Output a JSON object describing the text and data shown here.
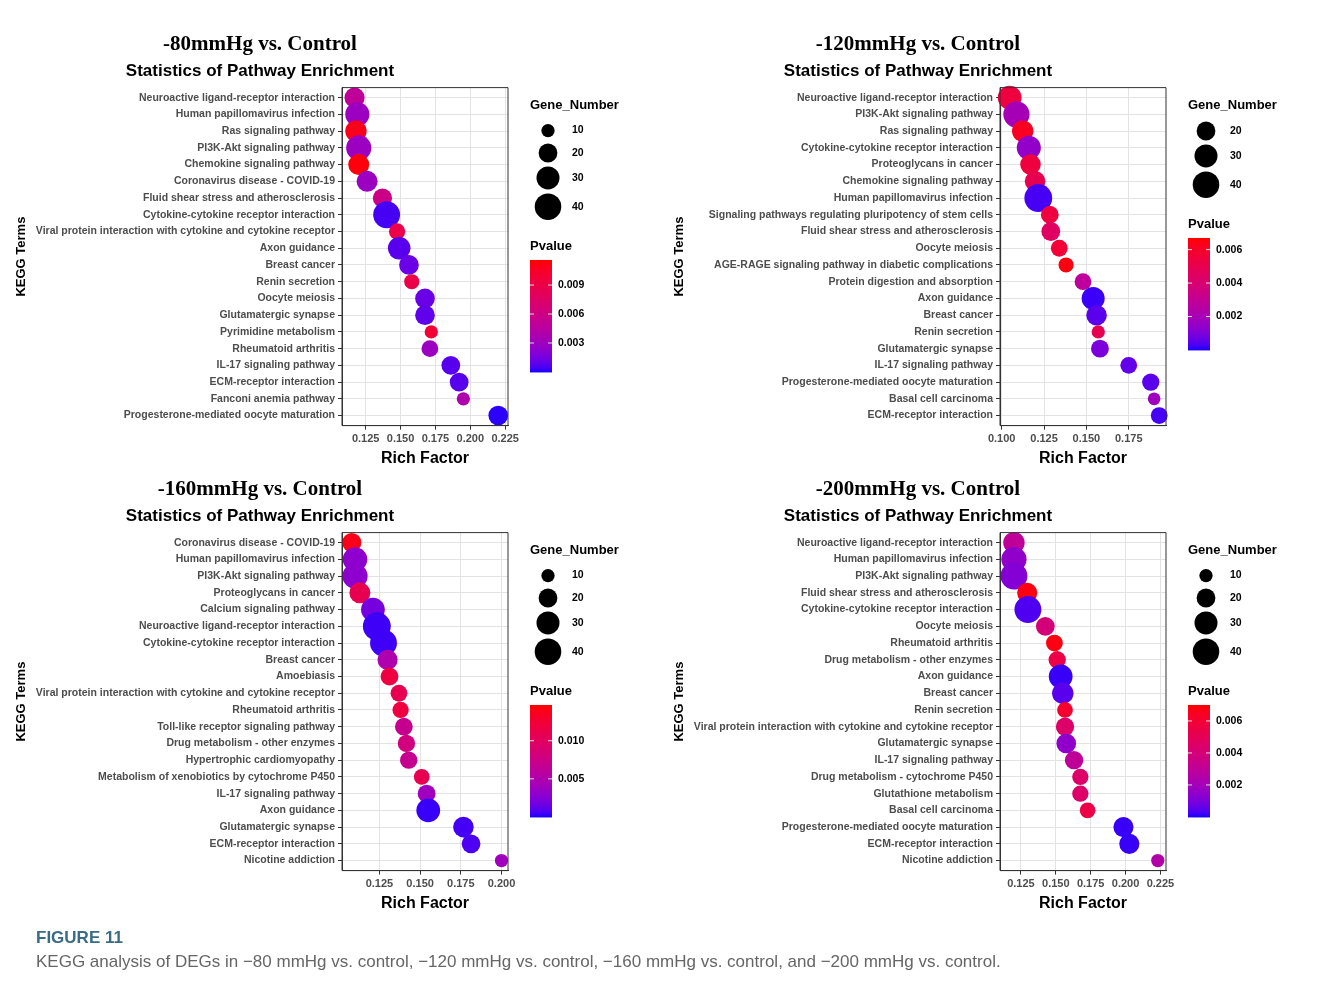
{
  "chart_data": [
    {
      "type": "bubble",
      "orientation": "horizontal",
      "title": "-80mmHg vs. Control",
      "subtitle": "Statistics of Pathway Enrichment",
      "xlabel": "Rich Factor",
      "ylabel": "KEGG Terms",
      "legend_title": "Gene_Number",
      "clabel": "Pvalue",
      "grid": true,
      "categories": [
        "Neuroactive ligand-receptor interaction",
        "Human papillomavirus infection",
        "Ras signaling pathway",
        "PI3K-Akt signaling pathway",
        "Chemokine signaling pathway",
        "Coronavirus disease - COVID-19",
        "Fluid shear stress and atherosclerosis",
        "Cytokine-cytokine receptor interaction",
        "Viral protein interaction with cytokine and cytokine receptor",
        "Axon guidance",
        "Breast cancer",
        "Renin secretion",
        "Oocyte meiosis",
        "Glutamatergic synapse",
        "Pyrimidine metabolism",
        "Rheumatoid arthritis",
        "IL-17 signaling pathway",
        "ECM-receptor interaction",
        "Fanconi anemia pathway",
        "Progesterone-mediated oocyte maturation"
      ],
      "values": [
        0.117,
        0.119,
        0.118,
        0.12,
        0.12,
        0.126,
        0.137,
        0.14,
        0.1475,
        0.149,
        0.156,
        0.158,
        0.1675,
        0.1675,
        0.172,
        0.171,
        0.186,
        0.192,
        0.195,
        0.22
      ],
      "sizes": [
        23,
        33,
        26,
        36,
        25,
        25,
        21,
        41,
        15,
        29,
        22,
        13,
        22,
        22,
        10,
        16,
        20,
        20,
        10,
        22
      ],
      "size_legend": [
        10,
        20,
        30,
        40
      ],
      "cvalues": [
        0.005,
        0.003,
        0.011,
        0.003,
        0.0114,
        0.003,
        0.006,
        0.0005,
        0.009,
        0.0008,
        0.0012,
        0.009,
        0.0012,
        0.001,
        0.01,
        0.003,
        0.0008,
        0.0008,
        0.004,
        0.0002
      ],
      "clim": [
        0,
        0.0116
      ],
      "cticks": [
        0.003,
        0.006,
        0.009
      ],
      "xlim": [
        0.108,
        0.227
      ],
      "xticks": [
        0.125,
        {
          "value": 0.15,
          "label": "0.150"
        },
        0.175,
        {
          "value": 0.2,
          "label": "0.200"
        },
        0.225
      ]
    },
    {
      "type": "bubble",
      "orientation": "horizontal",
      "title": "-120mmHg vs. Control",
      "subtitle": "Statistics of Pathway Enrichment",
      "xlabel": "Rich Factor",
      "ylabel": "KEGG Terms",
      "legend_title": "Gene_Number",
      "clabel": "Pvalue",
      "grid": true,
      "categories": [
        "Neuroactive ligand-receptor interaction",
        "PI3K-Akt signaling pathway",
        "Ras signaling pathway",
        "Cytokine-cytokine receptor interaction",
        "Proteoglycans in cancer",
        "Chemokine signaling pathway",
        "Human papillomavirus infection",
        "Signaling pathways regulating pluripotency of stem cells",
        "Fluid shear stress and atherosclerosis",
        "Oocyte meiosis",
        "AGE-RAGE signaling pathway in diabetic complications",
        "Protein digestion and absorption",
        "Axon guidance",
        "Breast cancer",
        "Renin secretion",
        "Glutamatergic synapse",
        "IL-17 signaling pathway",
        "Progesterone-mediated oocyte maturation",
        "Basal cell carcinoma",
        "ECM-receptor interaction"
      ],
      "values": [
        0.1047,
        0.1087,
        0.1124,
        0.116,
        0.117,
        0.1197,
        0.1216,
        0.1284,
        0.129,
        0.134,
        0.138,
        0.148,
        0.154,
        0.156,
        0.157,
        0.158,
        0.175,
        0.188,
        0.19,
        0.193
      ],
      "sizes": [
        32,
        39,
        26,
        33,
        24,
        24,
        44,
        18,
        20,
        16,
        13,
        16,
        30,
        24,
        10,
        18,
        16,
        17,
        9,
        16
      ],
      "size_legend": [
        20,
        30,
        40
      ],
      "cvalues": [
        0.0055,
        0.002,
        0.0062,
        0.0015,
        0.0055,
        0.005,
        0.0003,
        0.0055,
        0.0045,
        0.0057,
        0.0065,
        0.0028,
        0.0002,
        0.0005,
        0.005,
        0.001,
        0.0006,
        0.0005,
        0.0018,
        0.0003
      ],
      "clim": [
        0,
        0.0067
      ],
      "cticks": [
        0.002,
        0.004,
        0.006
      ],
      "xlim": [
        0.099,
        0.197
      ],
      "xticks": [
        {
          "value": 0.1,
          "label": "0.100"
        },
        0.125,
        {
          "value": 0.15,
          "label": "0.150"
        },
        0.175
      ]
    },
    {
      "type": "bubble",
      "orientation": "horizontal",
      "title": "-160mmHg vs. Control",
      "subtitle": "Statistics of Pathway Enrichment",
      "xlabel": "Rich Factor",
      "ylabel": "KEGG Terms",
      "legend_title": "Gene_Number",
      "clabel": "Pvalue",
      "grid": true,
      "categories": [
        "Coronavirus disease - COVID-19",
        "Human papillomavirus infection",
        "PI3K-Akt signaling pathway",
        "Proteoglycans in cancer",
        "Calcium signaling pathway",
        "Neuroactive ligand-receptor interaction",
        "Cytokine-cytokine receptor interaction",
        "Breast cancer",
        "Amoebiasis",
        "Viral protein interaction with cytokine and cytokine receptor",
        "Rheumatoid arthritis",
        "Toll-like receptor signaling pathway",
        "Drug metabolism - other enzymes",
        "Hypertrophic cardiomyopathy",
        "Metabolism of xenobiotics by cytochrome P450",
        "IL-17 signaling pathway",
        "Axon guidance",
        "Glutamatergic synapse",
        "ECM-receptor interaction",
        "Nicotine addiction"
      ],
      "values": [
        0.108,
        0.11,
        0.11,
        0.113,
        0.121,
        0.1234,
        0.1275,
        0.13,
        0.1312,
        0.137,
        0.138,
        0.14,
        0.1416,
        0.143,
        0.151,
        0.154,
        0.155,
        0.1766,
        0.1813,
        0.2
      ],
      "sizes": [
        21,
        34,
        36,
        25,
        32,
        44,
        41,
        23,
        18,
        16,
        15,
        18,
        17,
        17,
        14,
        18,
        32,
        24,
        20,
        10
      ],
      "size_legend": [
        10,
        20,
        30,
        40
      ],
      "cvalues": [
        0.014,
        0.003,
        0.003,
        0.011,
        0.002,
        0.0005,
        0.0005,
        0.005,
        0.012,
        0.011,
        0.012,
        0.007,
        0.008,
        0.007,
        0.011,
        0.004,
        0.0004,
        0.0006,
        0.0008,
        0.004
      ],
      "clim": [
        0,
        0.0147
      ],
      "cticks": [
        0.005,
        {
          "value": 0.01,
          "label": "0.010"
        }
      ],
      "xlim": [
        0.102,
        0.204
      ],
      "xticks": [
        0.125,
        {
          "value": 0.15,
          "label": "0.150"
        },
        0.175,
        {
          "value": 0.2,
          "label": "0.200"
        }
      ]
    },
    {
      "type": "bubble",
      "orientation": "horizontal",
      "title": "-200mmHg vs. Control",
      "subtitle": "Statistics of Pathway Enrichment",
      "xlabel": "Rich Factor",
      "ylabel": "KEGG Terms",
      "legend_title": "Gene_Number",
      "clabel": "Pvalue",
      "grid": true,
      "categories": [
        "Neuroactive ligand-receptor interaction",
        "Human papillomavirus infection",
        "PI3K-Akt signaling pathway",
        "Fluid shear stress and atherosclerosis",
        "Cytokine-cytokine receptor interaction",
        "Oocyte meiosis",
        "Rheumatoid arthritis",
        "Drug metabolism - other enzymes",
        "Axon guidance",
        "Breast cancer",
        "Renin secretion",
        "Viral protein interaction with cytokine and cytokine receptor",
        "Glutamatergic synapse",
        "IL-17 signaling pathway",
        "Drug metabolism - cytochrome P450",
        "Glutathione metabolism",
        "Basal cell carcinoma",
        "Progesterone-mediated oocyte maturation",
        "ECM-receptor interaction",
        "Nicotine addiction"
      ],
      "values": [
        0.12,
        0.12,
        0.12,
        0.1295,
        0.13,
        0.1425,
        0.149,
        0.151,
        0.1535,
        0.155,
        0.1566,
        0.1566,
        0.1575,
        0.1631,
        0.1676,
        0.1676,
        0.1728,
        0.1985,
        0.2027,
        0.2231
      ],
      "sizes": [
        26,
        36,
        41,
        23,
        41,
        20,
        16,
        17,
        32,
        26,
        14,
        19,
        22,
        19,
        15,
        15,
        14,
        23,
        23,
        10
      ],
      "size_legend": [
        10,
        20,
        30,
        40
      ],
      "cvalues": [
        0.003,
        0.0015,
        0.0012,
        0.0068,
        0.0004,
        0.004,
        0.0068,
        0.0055,
        0.0002,
        0.0005,
        0.0062,
        0.0045,
        0.0015,
        0.003,
        0.0045,
        0.0045,
        0.0055,
        0.0002,
        0.0002,
        0.0025
      ],
      "clim": [
        0,
        0.007
      ],
      "cticks": [
        0.002,
        0.004,
        0.006
      ],
      "xlim": [
        0.11,
        0.229
      ],
      "xticks": [
        0.125,
        {
          "value": 0.15,
          "label": "0.150"
        },
        0.175,
        {
          "value": 0.2,
          "label": "0.200"
        },
        0.225
      ],
      "annotations": [
        "FIGURE 11",
        "KEGG analysis of DEGs in −80 mmHg vs. control, −120 mmHg vs. control, −160 mmHg vs. control, and −200 mmHg vs. control."
      ]
    }
  ]
}
